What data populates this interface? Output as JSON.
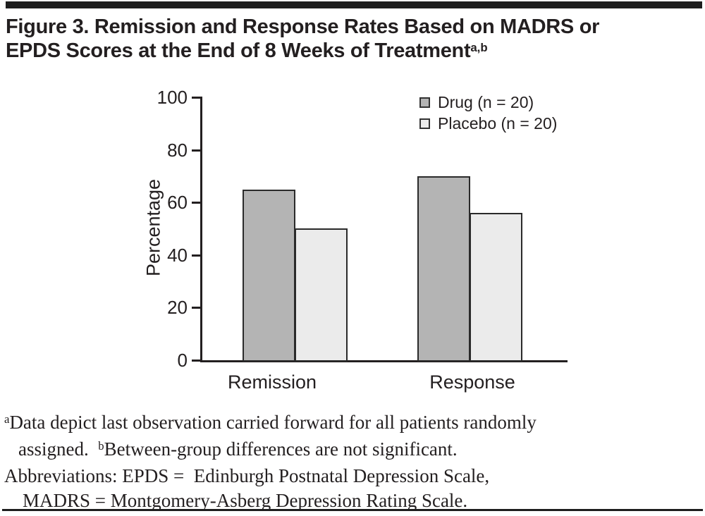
{
  "title": {
    "line1": "Figure 3. Remission and Response Rates Based on MADRS or",
    "line2": "EPDS Scores at the End of 8 Weeks of Treatment",
    "superscript": "a,b"
  },
  "chart_data": {
    "type": "bar",
    "title": "",
    "categories": [
      "Remission",
      "Response"
    ],
    "series": [
      {
        "name": "Drug (n = 20)",
        "color": "#b4b4b4",
        "values": [
          65,
          70
        ]
      },
      {
        "name": "Placebo (n = 20)",
        "color": "#ebebeb",
        "values": [
          50,
          56
        ]
      }
    ],
    "xlabel": "",
    "ylabel": "Percentage",
    "ylim": [
      0,
      100
    ],
    "yticks": [
      0,
      20,
      40,
      60,
      80,
      100
    ],
    "grid": false,
    "legend_position": "top-right",
    "bar_border_color": "#2a2a2a"
  },
  "footnotes": {
    "sup_a": "a",
    "line1": "Data depict last observation carried forward for all patients randomly",
    "line2_start": "assigned.  ",
    "sup_b": "b",
    "line2_rest": "Between-group differences are not significant.",
    "line3": "Abbreviations: EPDS =  Edinburgh Postnatal Depression Scale,",
    "line4": "MADRS = Montgomery-Asberg Depression Rating Scale."
  },
  "colors": {
    "rule": "#1e1e1e",
    "text": "#231f20",
    "axis": "#231f20",
    "drug_fill": "#b4b4b4",
    "placebo_fill": "#ebebeb"
  }
}
